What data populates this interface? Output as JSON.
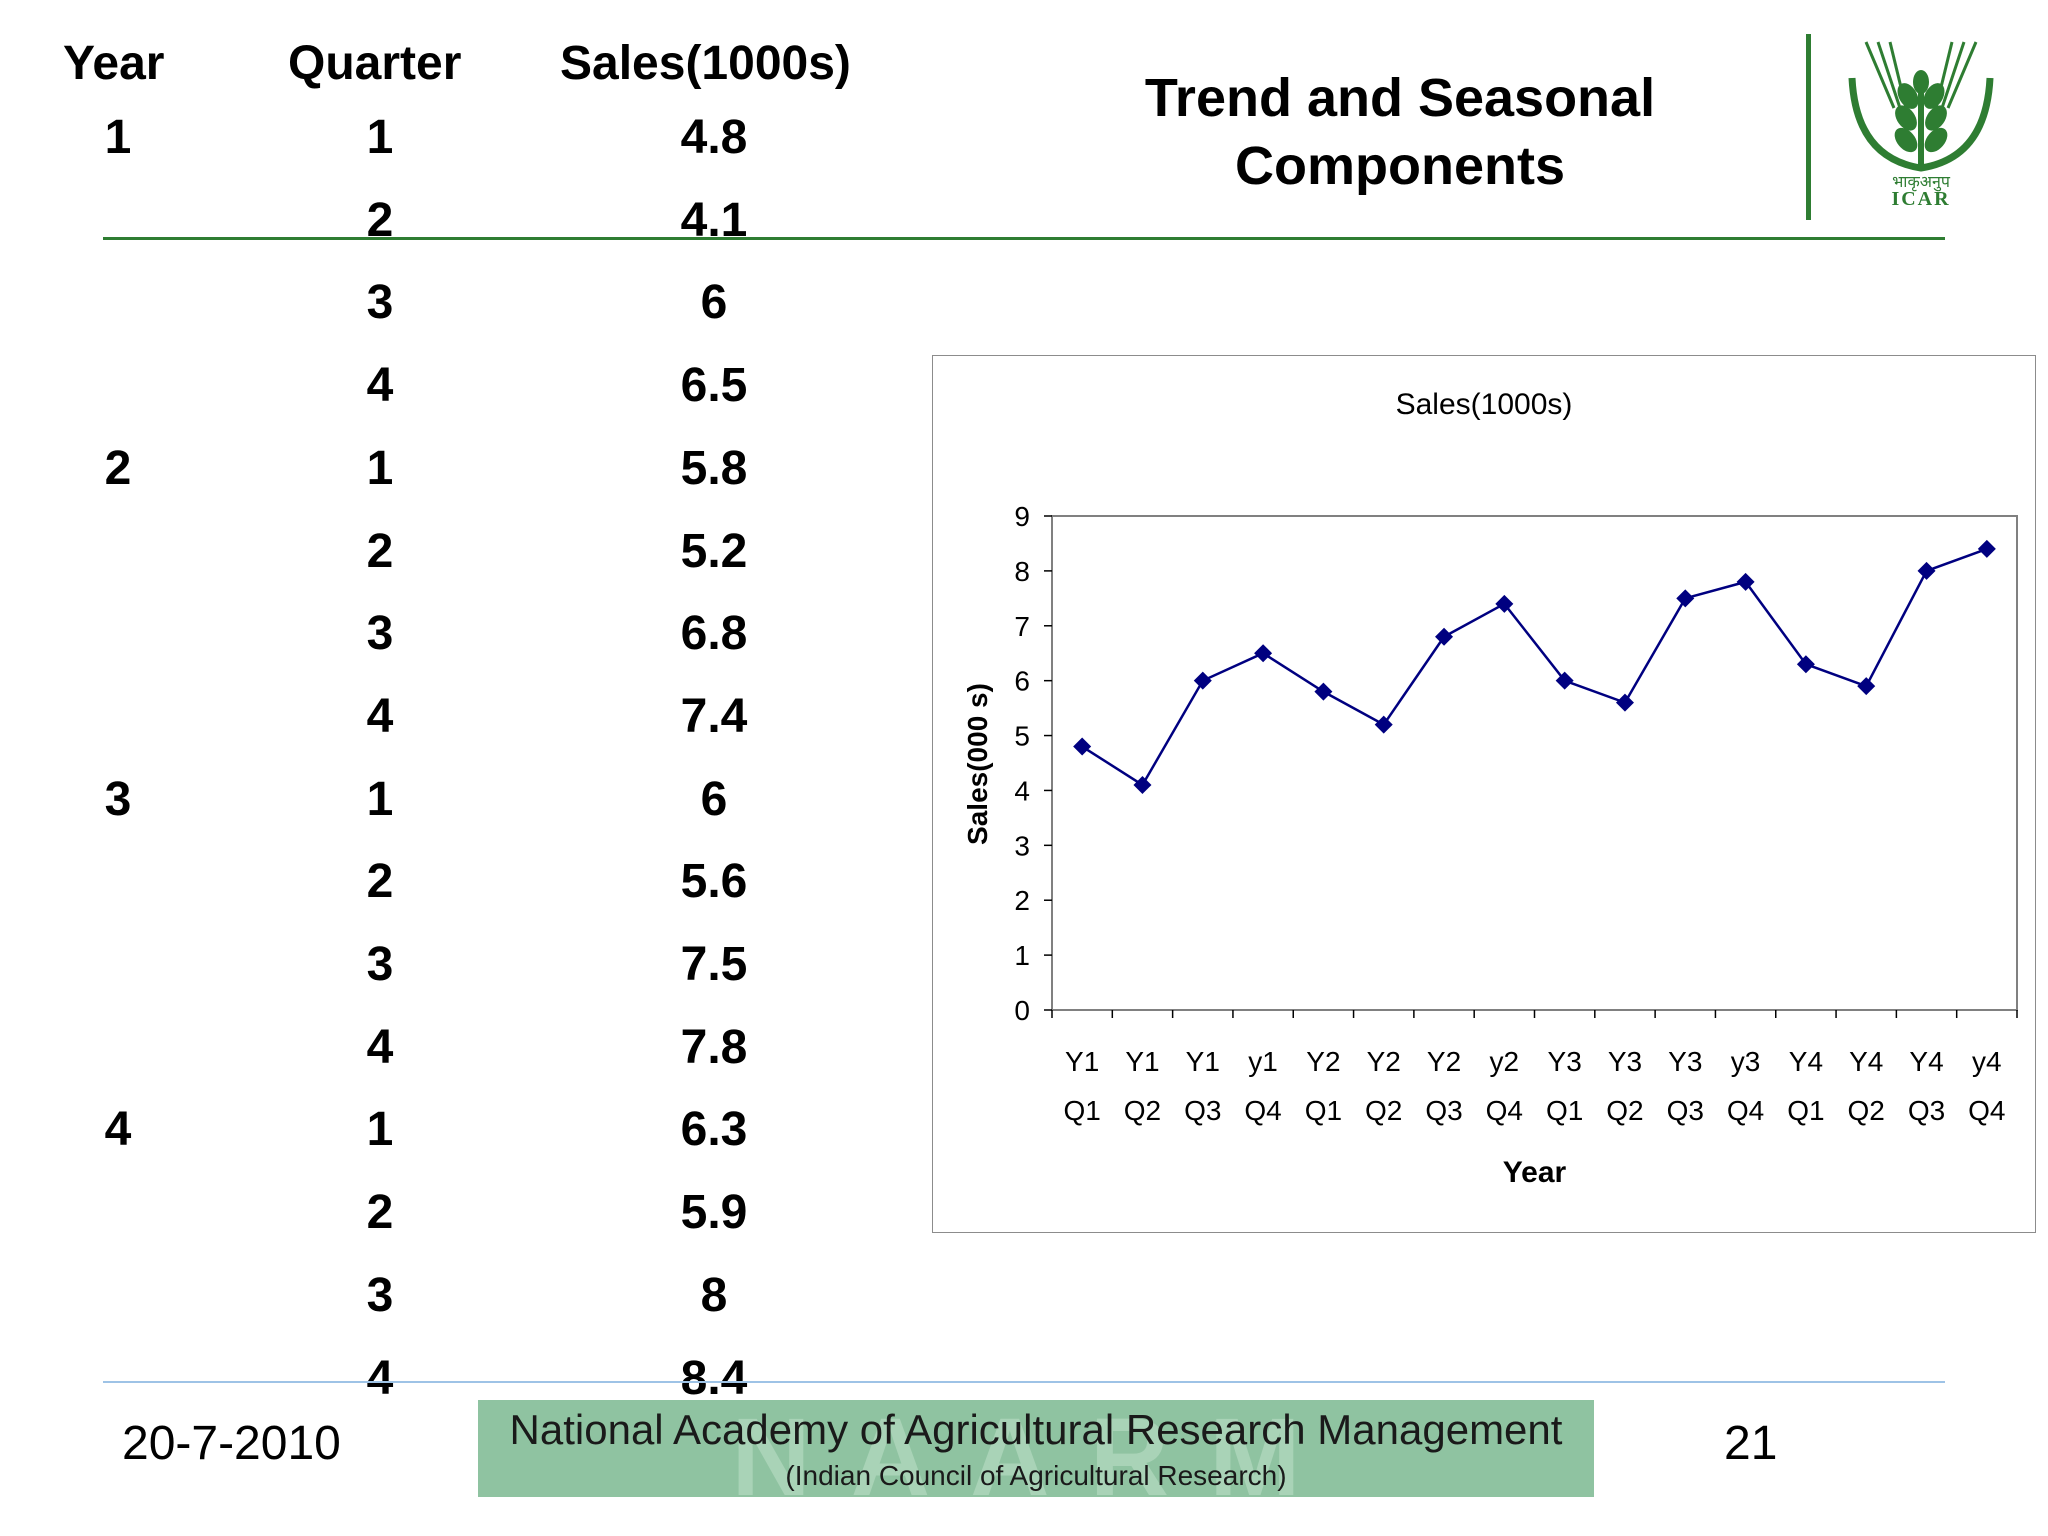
{
  "slide": {
    "title": "Trend and Seasonal Components",
    "date": "20-7-2010",
    "page_number": "21"
  },
  "table": {
    "headers": [
      "Year",
      "Quarter",
      "Sales(1000s)"
    ],
    "rows": [
      {
        "year": "1",
        "quarter": "1",
        "sales": "4.8"
      },
      {
        "year": "",
        "quarter": "2",
        "sales": "4.1"
      },
      {
        "year": "",
        "quarter": "3",
        "sales": "6"
      },
      {
        "year": "",
        "quarter": "4",
        "sales": "6.5"
      },
      {
        "year": "2",
        "quarter": "1",
        "sales": "5.8"
      },
      {
        "year": "",
        "quarter": "2",
        "sales": "5.2"
      },
      {
        "year": "",
        "quarter": "3",
        "sales": "6.8"
      },
      {
        "year": "",
        "quarter": "4",
        "sales": "7.4"
      },
      {
        "year": "3",
        "quarter": "1",
        "sales": "6"
      },
      {
        "year": "",
        "quarter": "2",
        "sales": "5.6"
      },
      {
        "year": "",
        "quarter": "3",
        "sales": "7.5"
      },
      {
        "year": "",
        "quarter": "4",
        "sales": "7.8"
      },
      {
        "year": "4",
        "quarter": "1",
        "sales": "6.3"
      },
      {
        "year": "",
        "quarter": "2",
        "sales": "5.9"
      },
      {
        "year": "",
        "quarter": "3",
        "sales": "8"
      },
      {
        "year": "",
        "quarter": "4",
        "sales": "8.4"
      }
    ]
  },
  "logo": {
    "hindi_text": "भाकृअनुप",
    "text": "ICAR",
    "color": "#2e7d32"
  },
  "banner": {
    "line1": "National Academy of Agricultural Research Management",
    "line2": "(Indian Council of Agricultural Research)",
    "watermark": "NAARM",
    "background": "#8fc3a1"
  },
  "chart_data": {
    "type": "line",
    "title": "Sales(1000s)",
    "xlabel": "Year",
    "ylabel": "Sales(000 s)",
    "categories": [
      [
        "Y1",
        "Q1"
      ],
      [
        "Y1",
        "Q2"
      ],
      [
        "Y1",
        "Q3"
      ],
      [
        "y1",
        "Q4"
      ],
      [
        "Y2",
        "Q1"
      ],
      [
        "Y2",
        "Q2"
      ],
      [
        "Y2",
        "Q3"
      ],
      [
        "y2",
        "Q4"
      ],
      [
        "Y3",
        "Q1"
      ],
      [
        "Y3",
        "Q2"
      ],
      [
        "Y3",
        "Q3"
      ],
      [
        "y3",
        "Q4"
      ],
      [
        "Y4",
        "Q1"
      ],
      [
        "Y4",
        "Q2"
      ],
      [
        "Y4",
        "Q3"
      ],
      [
        "y4",
        "Q4"
      ]
    ],
    "series": [
      {
        "values": [
          4.8,
          4.1,
          6,
          6.5,
          5.8,
          5.2,
          6.8,
          7.4,
          6,
          5.6,
          7.5,
          7.8,
          6.3,
          5.9,
          8,
          8.4
        ]
      }
    ],
    "ylim": [
      0,
      9
    ],
    "yticks": [
      0,
      1,
      2,
      3,
      4,
      5,
      6,
      7,
      8,
      9
    ],
    "line_color": "#000080",
    "marker": "diamond",
    "grid": false,
    "legend": "none"
  }
}
